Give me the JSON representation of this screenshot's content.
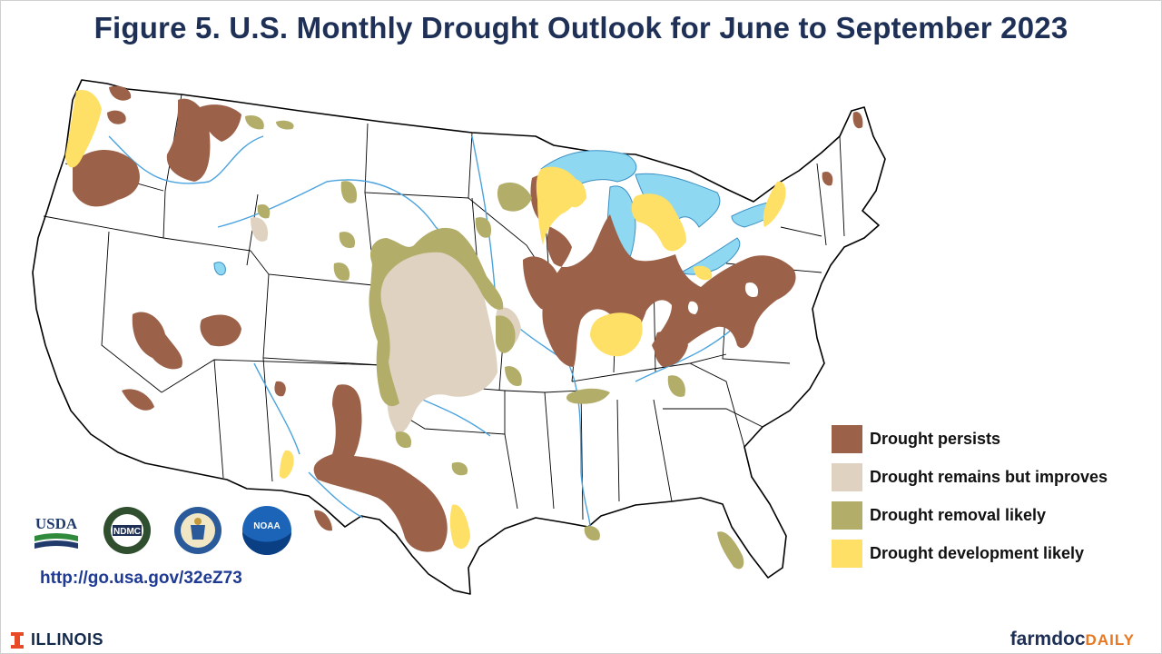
{
  "title": "Figure 5. U.S. Monthly Drought Outlook  for June to September 2023",
  "legend": [
    {
      "label": "Drought persists",
      "color": "#9c6249"
    },
    {
      "label": "Drought remains but improves",
      "color": "#dfd2c1"
    },
    {
      "label": "Drought removal likely",
      "color": "#b3ad6a"
    },
    {
      "label": "Drought development likely",
      "color": "#ffe066"
    }
  ],
  "logos": {
    "usda": "USDA",
    "ndmc": "NDMC",
    "noaa": "NOAA",
    "commerce": "seal"
  },
  "url": "http://go.usa.gov/32eZ73",
  "footer": {
    "illinois": "ILLINOIS",
    "farmdoc_1": "farmdoc",
    "farmdoc_2": "DAILY"
  },
  "colors": {
    "title": "#1f3057",
    "water": "#8fd8f2",
    "rivers": "#4aa3df",
    "border": "#000000"
  }
}
